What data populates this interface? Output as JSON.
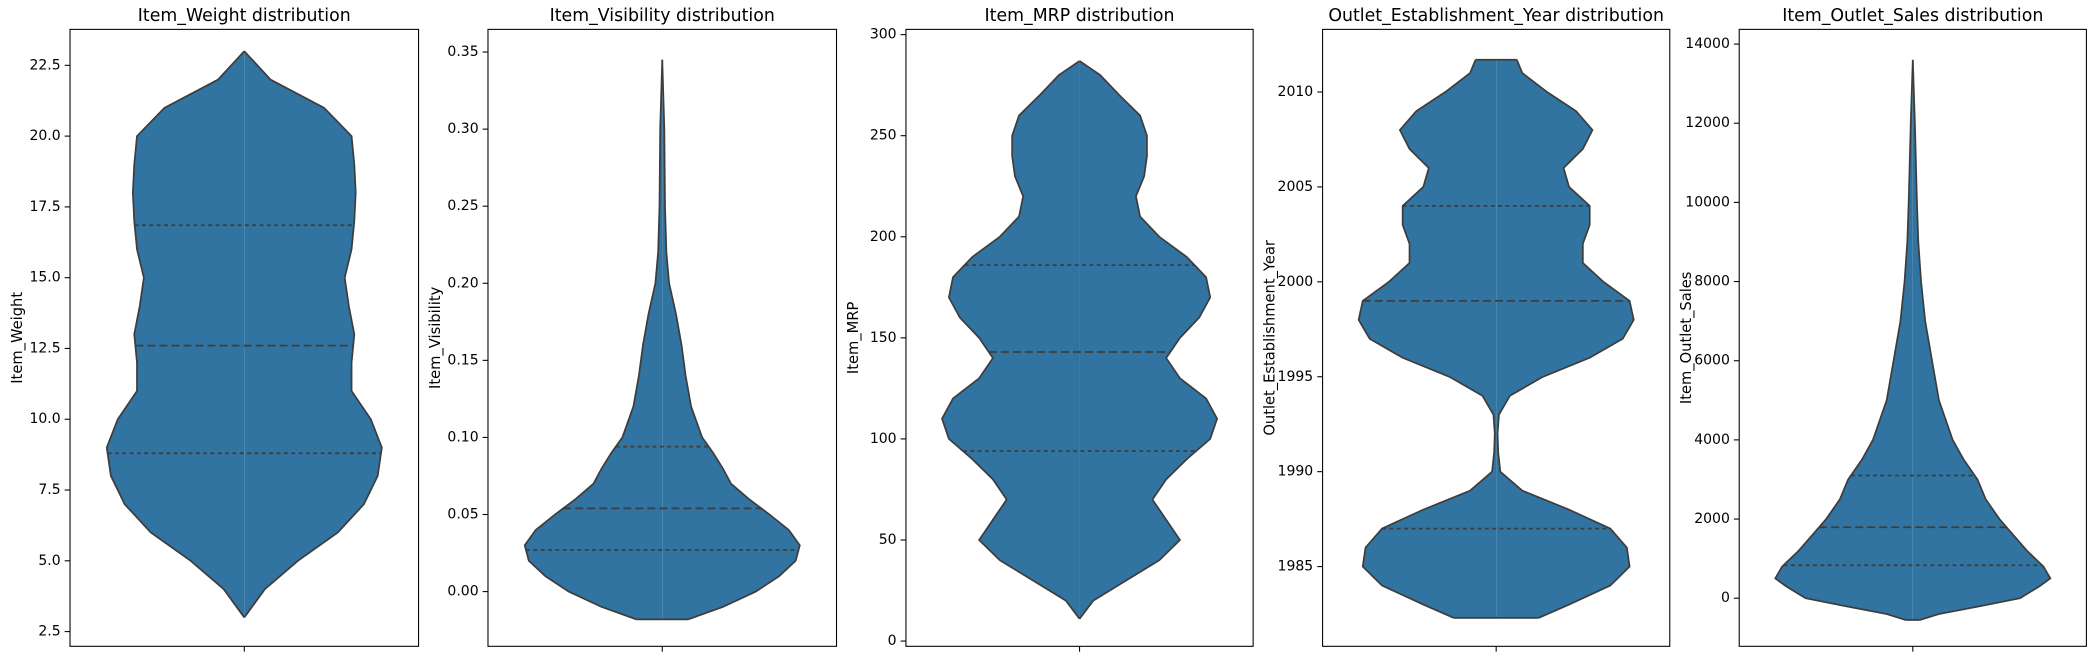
{
  "chart_data": [
    {
      "type": "violin",
      "title": "Item_Weight distribution",
      "ylabel": "Item_Weight",
      "color": "#3274a1",
      "ylim": [
        1.98,
        23.77
      ],
      "yticks": [
        2.5,
        {
          "value": 5,
          "label": "5.0"
        },
        7.5,
        {
          "value": 10,
          "label": "10.0"
        },
        12.5,
        {
          "value": 15,
          "label": "15.0"
        },
        17.5,
        {
          "value": 20,
          "label": "20.0"
        },
        22.5
      ],
      "y": [
        3.0,
        4,
        5,
        6,
        7,
        8,
        9,
        10,
        11,
        12,
        13,
        14,
        15,
        16,
        17,
        18,
        19,
        20,
        21,
        22,
        23
      ],
      "density": [
        0,
        0.15,
        0.39,
        0.68,
        0.87,
        0.97,
        1.0,
        0.92,
        0.78,
        0.78,
        0.8,
        0.76,
        0.73,
        0.78,
        0.8,
        0.81,
        0.8,
        0.78,
        0.58,
        0.19,
        0
      ],
      "quartiles": [
        8.8,
        12.6,
        16.85
      ]
    },
    {
      "type": "violin",
      "title": "Item_Visibility distribution",
      "ylabel": "Item_Visibility",
      "color": "#3274a1",
      "ylim": [
        -0.0355,
        0.3647
      ],
      "yticks": [
        {
          "value": 0,
          "label": "0.00"
        },
        0.05,
        {
          "value": 0.1,
          "label": "0.10"
        },
        0.15,
        {
          "value": 0.2,
          "label": "0.20"
        },
        0.25,
        {
          "value": 0.3,
          "label": "0.30"
        },
        0.35
      ],
      "y": [
        -0.018,
        -0.01,
        0,
        0.01,
        0.02,
        0.03,
        0.04,
        0.05,
        0.06,
        0.07,
        0.08,
        0.09,
        0.1,
        0.12,
        0.14,
        0.16,
        0.18,
        0.2,
        0.22,
        0.25,
        0.3,
        0.345
      ],
      "density": [
        0.19,
        0.44,
        0.68,
        0.85,
        0.97,
        1.0,
        0.92,
        0.78,
        0.63,
        0.5,
        0.44,
        0.37,
        0.29,
        0.21,
        0.17,
        0.14,
        0.1,
        0.05,
        0.03,
        0.02,
        0.015,
        0
      ],
      "quartiles": [
        0.027,
        0.054,
        0.094
      ]
    },
    {
      "type": "violin",
      "title": "Item_MRP distribution",
      "ylabel": "Item_MRP",
      "color": "#3274a1",
      "ylim": [
        -2.6,
        302.6
      ],
      "yticks": [
        0,
        50,
        100,
        150,
        200,
        250,
        300
      ],
      "y": [
        11,
        20,
        30,
        40,
        50,
        60,
        70,
        80,
        90,
        100,
        110,
        120,
        130,
        140,
        150,
        160,
        170,
        180,
        190,
        200,
        210,
        220,
        230,
        240,
        250,
        260,
        270,
        280,
        287
      ],
      "density": [
        0,
        0.1,
        0.34,
        0.58,
        0.73,
        0.63,
        0.53,
        0.63,
        0.78,
        0.95,
        1.0,
        0.92,
        0.73,
        0.63,
        0.73,
        0.87,
        0.95,
        0.92,
        0.78,
        0.58,
        0.44,
        0.41,
        0.47,
        0.49,
        0.49,
        0.44,
        0.29,
        0.15,
        0
      ],
      "quartiles": [
        94,
        143,
        186
      ]
    },
    {
      "type": "violin",
      "title": "Outlet_Establishment_Year distribution",
      "ylabel": "Outlet_Establishment_Year",
      "color": "#3274a1",
      "ylim": [
        1980.8,
        2013.3
      ],
      "yticks": [
        1985,
        1990,
        1995,
        2000,
        2005,
        2010
      ],
      "y": [
        1982.3,
        1983,
        1984,
        1985,
        1986,
        1987,
        1988,
        1989,
        1990,
        1991,
        1992,
        1993,
        1994,
        1995,
        1996,
        1997,
        1998,
        1999,
        2000,
        2001,
        2002,
        2003,
        2004,
        2005,
        2006,
        2007,
        2008,
        2009,
        2010,
        2011,
        2011.7
      ],
      "density": [
        0.31,
        0.53,
        0.83,
        0.97,
        0.95,
        0.83,
        0.53,
        0.19,
        0.03,
        0.015,
        0.01,
        0.02,
        0.1,
        0.34,
        0.68,
        0.92,
        1.0,
        0.97,
        0.78,
        0.63,
        0.63,
        0.68,
        0.68,
        0.53,
        0.49,
        0.63,
        0.7,
        0.58,
        0.37,
        0.19,
        0.15
      ],
      "quartiles": [
        1987,
        1999,
        2004
      ]
    },
    {
      "type": "violin",
      "title": "Item_Outlet_Sales distribution",
      "ylabel": "Item_Outlet_Sales",
      "color": "#3274a1",
      "ylim": [
        -1215,
        14371
      ],
      "yticks": [
        0,
        2000,
        4000,
        6000,
        8000,
        10000,
        12000,
        14000
      ],
      "y": [
        -550,
        -400,
        -200,
        0,
        300,
        500,
        800,
        1200,
        1600,
        2000,
        2500,
        3000,
        3500,
        4000,
        5000,
        6000,
        7000,
        8000,
        9000,
        10000,
        12000,
        13600
      ],
      "density": [
        0.05,
        0.19,
        0.49,
        0.78,
        0.92,
        1.0,
        0.95,
        0.83,
        0.73,
        0.63,
        0.53,
        0.47,
        0.37,
        0.29,
        0.19,
        0.14,
        0.09,
        0.06,
        0.04,
        0.03,
        0.015,
        0
      ],
      "quartiles": [
        834,
        1794,
        3101
      ]
    }
  ]
}
